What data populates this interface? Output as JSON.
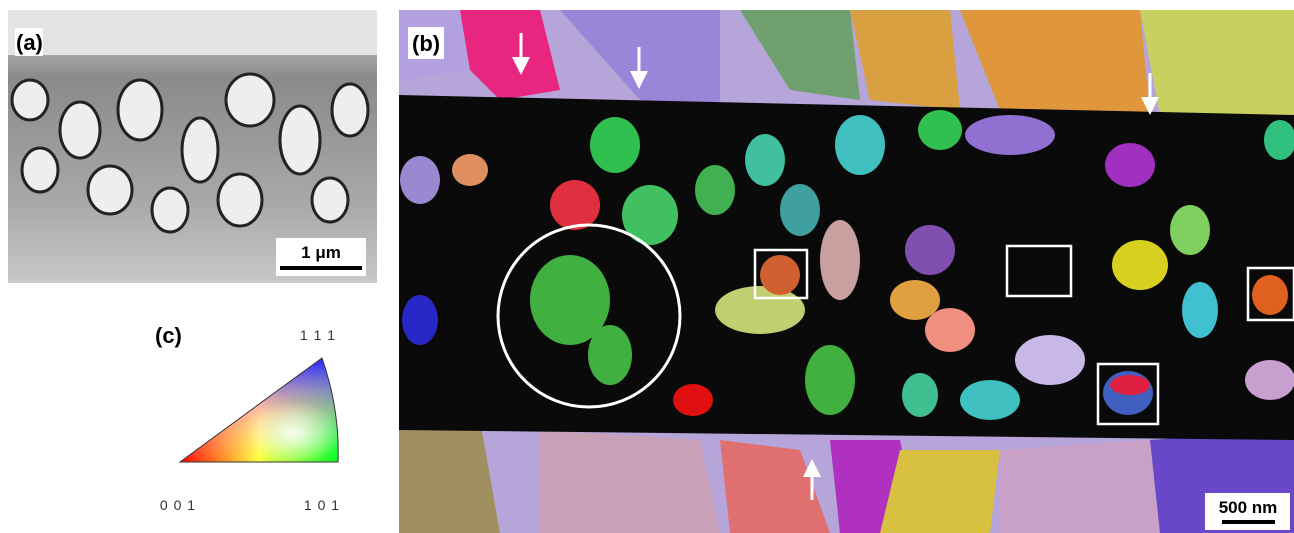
{
  "panels": [
    {
      "label": "(a)",
      "scale_bar": "1 μm"
    },
    {
      "label": "(b)",
      "scale_bar": "500 nm"
    },
    {
      "label": "(c)",
      "corners": [
        "1 1 1",
        "0 0 1",
        "1 0 1"
      ]
    }
  ]
}
